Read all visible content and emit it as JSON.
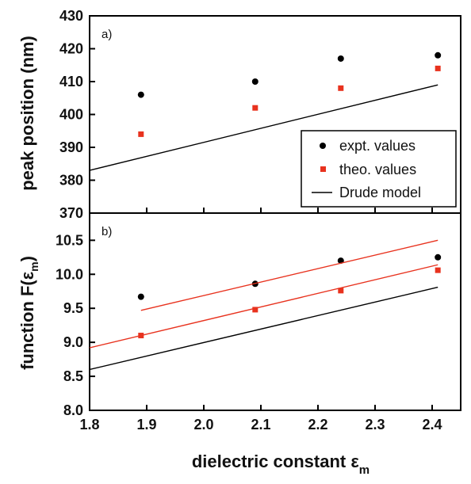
{
  "chart_data": [
    {
      "type": "scatter",
      "panel_label": "a)",
      "ylabel": "peak position (nm)",
      "ylim": [
        370,
        430
      ],
      "yticks": [
        "370",
        "380",
        "390",
        "400",
        "410",
        "420",
        "430"
      ],
      "legend_placement": "bottom-right",
      "series": [
        {
          "name": "expt. values",
          "kind": "points",
          "marker": "circle",
          "color": "#000000",
          "x": [
            1.89,
            2.09,
            2.24,
            2.41
          ],
          "y": [
            406,
            410,
            417,
            418
          ]
        },
        {
          "name": "theo. values",
          "kind": "points",
          "marker": "square",
          "color": "#e8321e",
          "x": [
            1.89,
            2.09,
            2.24,
            2.41
          ],
          "y": [
            394,
            402,
            408,
            414
          ]
        },
        {
          "name": "Drude model",
          "kind": "line",
          "color": "#000000",
          "x": [
            1.8,
            2.41
          ],
          "y": [
            383,
            409
          ]
        }
      ]
    },
    {
      "type": "scatter",
      "panel_label": "b)",
      "ylabel": "function F(ε",
      "ylabel_sub": "m",
      "ylabel_close": ")",
      "ylim": [
        8.0,
        10.9
      ],
      "yticks": [
        "8.0",
        "8.5",
        "9.0",
        "9.5",
        "10.0",
        "10.5"
      ],
      "xlabel": "dielectric constant ε",
      "xlabel_sub": "m",
      "xlim": [
        1.8,
        2.45
      ],
      "xticks": [
        "1.8",
        "1.9",
        "2.0",
        "2.1",
        "2.2",
        "2.3",
        "2.4"
      ],
      "series": [
        {
          "kind": "points",
          "marker": "circle",
          "color": "#000000",
          "x": [
            1.89,
            2.09,
            2.24,
            2.41
          ],
          "y": [
            9.67,
            9.86,
            10.2,
            10.25
          ]
        },
        {
          "kind": "points",
          "marker": "square",
          "color": "#e8321e",
          "x": [
            1.89,
            2.09,
            2.24,
            2.41
          ],
          "y": [
            9.1,
            9.48,
            9.76,
            10.06
          ]
        },
        {
          "kind": "line",
          "color": "#e8321e",
          "x": [
            1.89,
            2.41
          ],
          "y": [
            9.47,
            10.5
          ]
        },
        {
          "kind": "line",
          "color": "#e8321e",
          "x": [
            1.8,
            2.41
          ],
          "y": [
            8.92,
            10.14
          ]
        },
        {
          "kind": "line",
          "color": "#000000",
          "x": [
            1.8,
            2.41
          ],
          "y": [
            8.6,
            9.81
          ]
        }
      ]
    }
  ]
}
